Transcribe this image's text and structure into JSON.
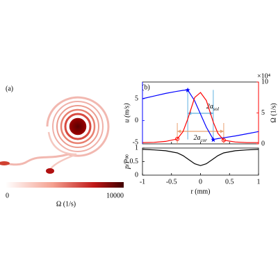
{
  "panel_a": {
    "label": "(a)",
    "colorbar": {
      "label": "Ω (1/s)",
      "lim": [
        0,
        10000
      ],
      "ticks": [
        0,
        10000
      ]
    }
  },
  "panel_b_label": "(b)",
  "chart_data": [
    {
      "type": "line",
      "ylabel": "u (m/s)",
      "y2label": "Ω (1/s)",
      "y2multiplier": "×10⁴",
      "x": [
        -1,
        -0.8,
        -0.6,
        -0.4,
        -0.3,
        -0.22,
        -0.1,
        0,
        0.1,
        0.22,
        0.3,
        0.4,
        0.6,
        0.8,
        1
      ],
      "series": [
        {
          "name": "u",
          "color": "#0000ff",
          "values": [
            5,
            5.6,
            6.2,
            6.7,
            6.9,
            7,
            4.5,
            1.5,
            -1.5,
            -4.3,
            -4.1,
            -3.9,
            -3.5,
            -3,
            -2.5
          ]
        },
        {
          "name": "Ω",
          "color": "#ff0000",
          "axis": "y2",
          "values": [
            0.2,
            0.25,
            0.4,
            0.8,
            2,
            4,
            7.5,
            8.3,
            7,
            3.5,
            1.7,
            0.6,
            0.3,
            0.2,
            0.2
          ]
        }
      ],
      "annotations": [
        {
          "text": "2a",
          "sub": "sol",
          "color": "#5fb0e0"
        },
        {
          "text": "2a",
          "sub": "cor",
          "color": "#e8a070"
        }
      ],
      "xlim": [
        -1,
        1
      ],
      "xticks": [
        -1,
        -0.5,
        0,
        0.5,
        1
      ],
      "ylim": [
        -5.3,
        8.8
      ],
      "yticks": [
        -5,
        0,
        5
      ],
      "y2lim": [
        0,
        10
      ],
      "y2ticks": [
        0,
        5,
        10
      ]
    },
    {
      "type": "line",
      "xlabel": "r (mm)",
      "ylabel": "p/P∞",
      "x": [
        -1,
        -0.8,
        -0.6,
        -0.4,
        -0.3,
        -0.22,
        -0.1,
        0,
        0.1,
        0.22,
        0.3,
        0.4,
        0.6,
        0.8,
        1
      ],
      "series": [
        {
          "name": "p",
          "color": "#000000",
          "values": [
            0.95,
            0.93,
            0.9,
            0.82,
            0.72,
            0.6,
            0.42,
            0.35,
            0.42,
            0.6,
            0.72,
            0.82,
            0.9,
            0.93,
            0.95
          ]
        }
      ],
      "xlim": [
        -1,
        1
      ],
      "xticks": [
        -1,
        -0.5,
        0,
        0.5,
        1
      ],
      "ylim": [
        0,
        1
      ],
      "yticks": [
        0,
        0.5,
        1
      ]
    }
  ]
}
